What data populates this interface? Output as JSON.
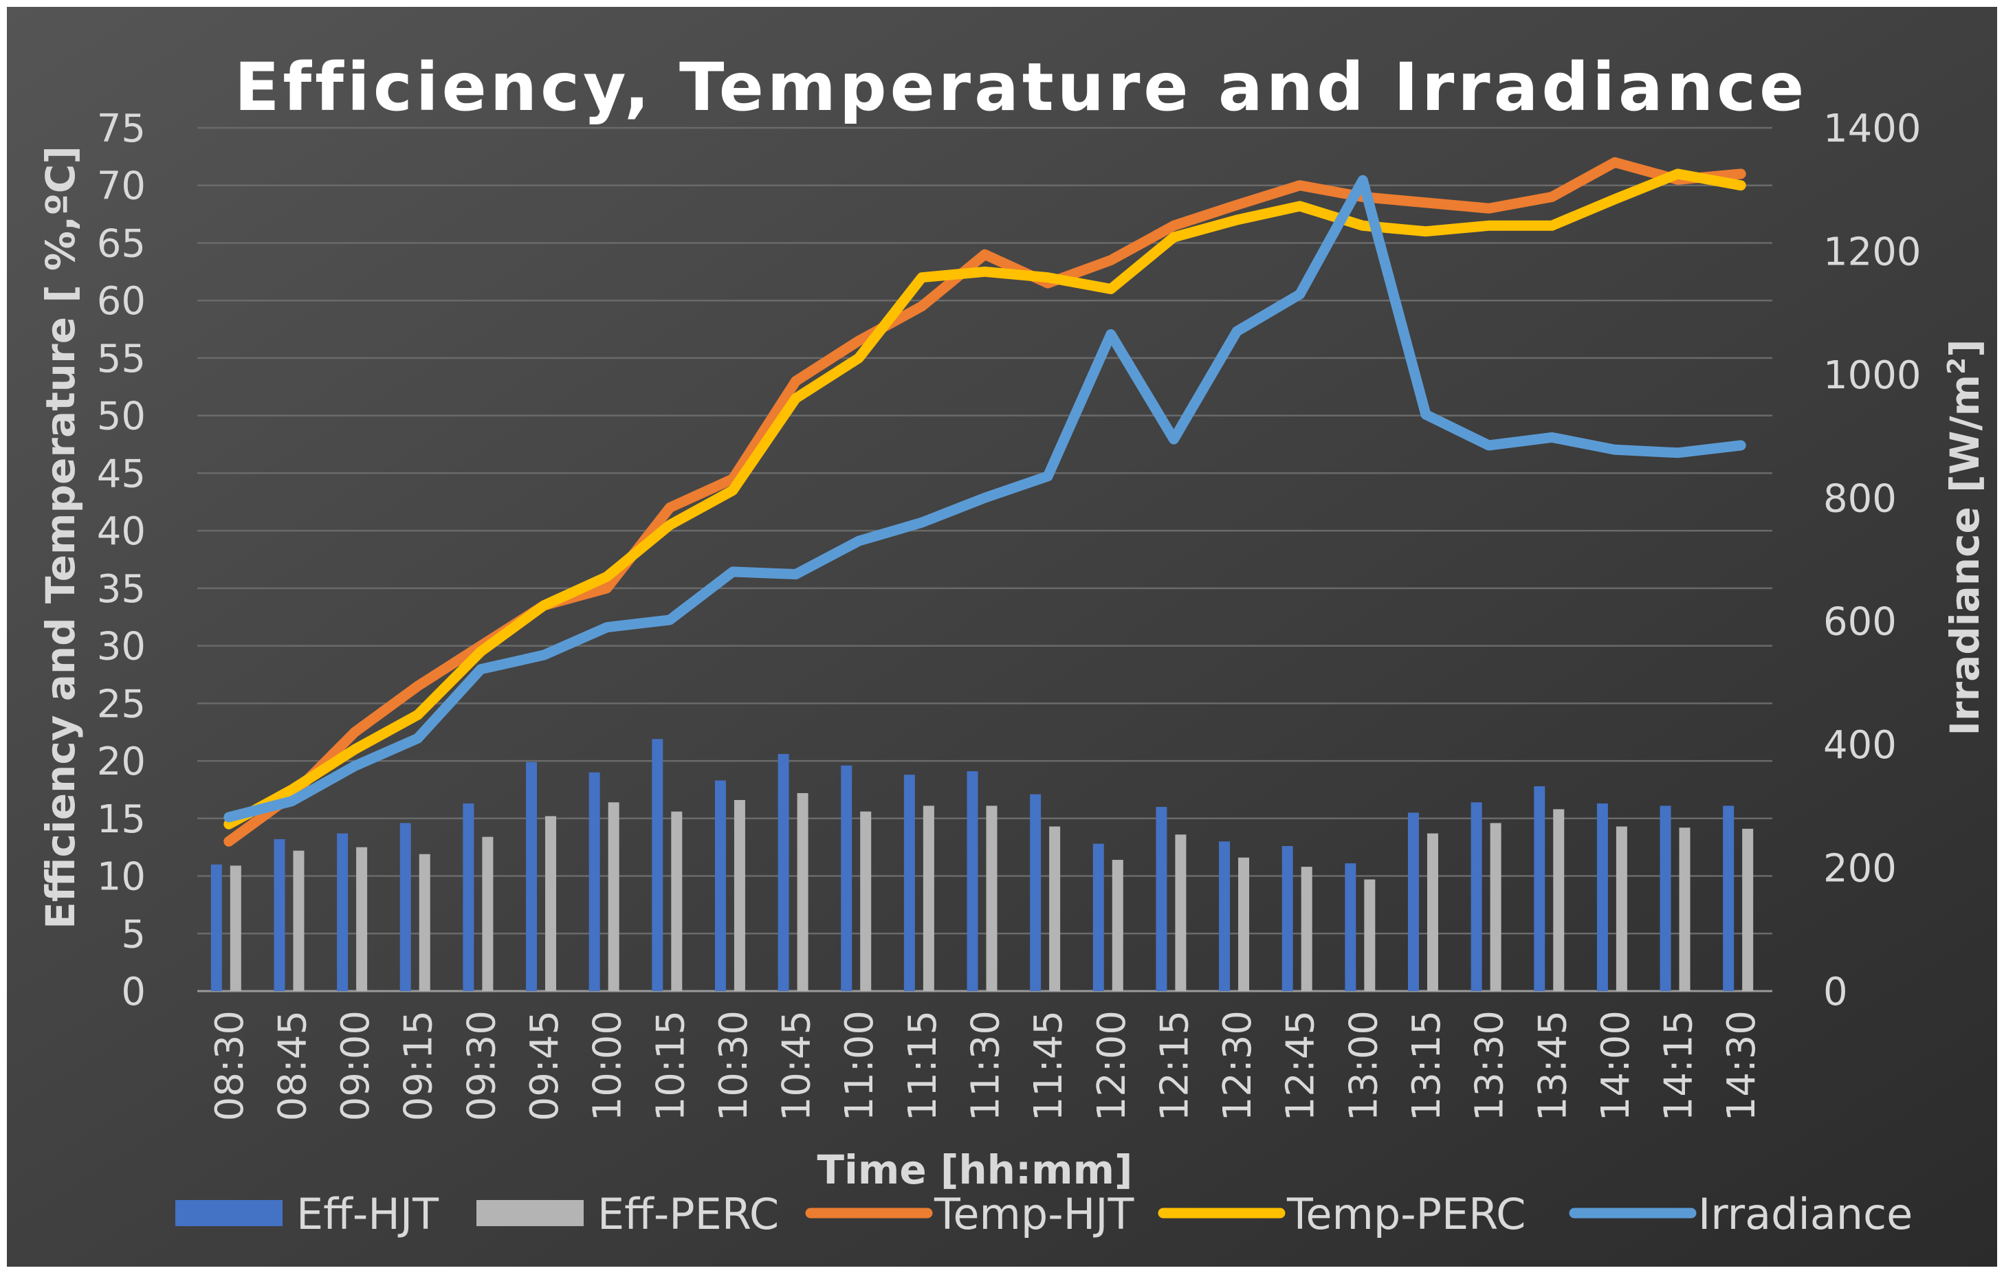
{
  "chart_data": {
    "type": "bar+line",
    "title": "Efficiency, Temperature and Irradiance",
    "xlabel": "Time [hh:mm]",
    "ylabel_left": "Efficiency and Temperature [ %,ºC]",
    "ylabel_right": "Irradiance [W/m",
    "ylabel_right_sup": "2",
    "ylabel_right_close": "]",
    "ylim_left": [
      0,
      75
    ],
    "ylim_right": [
      0,
      1400
    ],
    "yticks_left": [
      "0",
      "5",
      "10",
      "15",
      "20",
      "25",
      "30",
      "35",
      "40",
      "45",
      "50",
      "55",
      "60",
      "65",
      "70",
      "75"
    ],
    "yticks_right": [
      "0",
      "200",
      "400",
      "600",
      "800",
      "1000",
      "1200",
      "1400"
    ],
    "categories": [
      "08:30",
      "08:45",
      "09:00",
      "09:15",
      "09:30",
      "09:45",
      "10:00",
      "10:15",
      "10:30",
      "10:45",
      "11:00",
      "11:15",
      "11:30",
      "11:45",
      "12:00",
      "12:15",
      "12:30",
      "12:45",
      "13:00",
      "13:15",
      "13:30",
      "13:45",
      "14:00",
      "14:15",
      "14:30"
    ],
    "grid": true,
    "legend_position": "bottom",
    "series": [
      {
        "name": "Eff-HJT",
        "kind": "bar",
        "axis": "left",
        "color": "#4472c4",
        "values": [
          11,
          13.2,
          13.7,
          14.6,
          16.3,
          19.9,
          19,
          21.9,
          18.3,
          20.6,
          19.6,
          18.8,
          19.1,
          17.1,
          12.8,
          16,
          13,
          12.6,
          11.1,
          15.5,
          16.4,
          17.8,
          16.3,
          16.1,
          16.1
        ]
      },
      {
        "name": "Eff-PERC",
        "kind": "bar",
        "axis": "left",
        "color": "#b4b4b4",
        "values": [
          10.9,
          12.2,
          12.5,
          11.9,
          13.4,
          15.2,
          16.4,
          15.6,
          16.6,
          17.2,
          15.6,
          16.1,
          16.1,
          14.3,
          11.4,
          13.6,
          11.6,
          10.8,
          9.7,
          13.7,
          14.6,
          15.8,
          14.3,
          14.2,
          14.1
        ]
      },
      {
        "name": "Temp-HJT",
        "kind": "line",
        "axis": "left",
        "color": "#ed7d31",
        "values": [
          13,
          17,
          22.5,
          26.5,
          30,
          33.5,
          35,
          42,
          44.5,
          53,
          56.5,
          59.5,
          64,
          61.5,
          63.5,
          66.5,
          68.3,
          70,
          69,
          68.5,
          68,
          69,
          72,
          70.5,
          71
        ]
      },
      {
        "name": "Temp-PERC",
        "kind": "line",
        "axis": "left",
        "color": "#ffc000",
        "values": [
          14.5,
          17.5,
          21,
          24,
          29.5,
          33.5,
          36,
          40.5,
          43.5,
          51.5,
          55,
          62,
          62.5,
          62,
          61,
          65.5,
          67,
          68.2,
          66.5,
          66,
          66.5,
          66.5,
          68.8,
          71,
          70
        ]
      },
      {
        "name": "Irradiance",
        "kind": "line",
        "axis": "right",
        "color": "#5b9bd5",
        "values": [
          282,
          308,
          365,
          410,
          522,
          545,
          590,
          602,
          680,
          676,
          730,
          760,
          800,
          835,
          1065,
          895,
          1070,
          1130,
          1315,
          935,
          885,
          898,
          878,
          873,
          885
        ]
      }
    ]
  }
}
